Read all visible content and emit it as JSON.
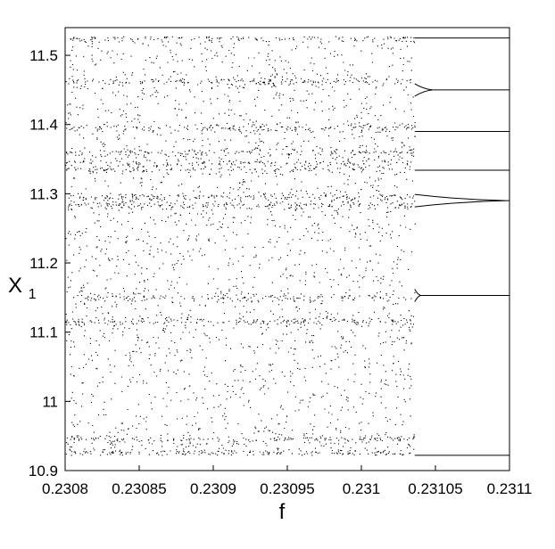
{
  "chart_data": {
    "type": "scatter",
    "title": "",
    "xlabel": "f",
    "ylabel_main": "X",
    "ylabel_sub": "1",
    "xlim": [
      0.2308,
      0.2311
    ],
    "ylim": [
      10.9,
      11.54
    ],
    "x_ticks": [
      0.2308,
      0.23085,
      0.2309,
      0.23095,
      0.231,
      0.23105,
      0.2311
    ],
    "x_tick_labels": [
      "0.2308",
      "0.23085",
      "0.2309",
      "0.23095",
      "0.231",
      "0.23105",
      "0.2311"
    ],
    "y_ticks": [
      10.9,
      11.0,
      11.1,
      11.2,
      11.3,
      11.4,
      11.5
    ],
    "y_tick_labels": [
      "10.9",
      "11",
      "11.1",
      "11.2",
      "11.3",
      "11.4",
      "11.5"
    ],
    "grid": false,
    "legend": "none",
    "marker_color": "#000000",
    "chaos_end_x": 0.231036,
    "chaotic_band": [
      10.922,
      11.527
    ],
    "dense_bands": [
      10.925,
      10.945,
      11.115,
      11.15,
      11.283,
      11.295,
      11.335,
      11.345,
      11.36,
      11.395,
      11.462,
      11.525
    ],
    "periodic_orbits": [
      {
        "y_end": 11.525
      },
      {
        "y_end": 11.45,
        "cusp_x": 0.231048
      },
      {
        "y_end": 11.39
      },
      {
        "y_end": 11.334
      },
      {
        "y_end": 11.29,
        "cusp_x": 0.231098
      },
      {
        "y_end": 11.153,
        "cusp_x": 0.23104
      },
      {
        "y_end": 10.922
      }
    ]
  }
}
